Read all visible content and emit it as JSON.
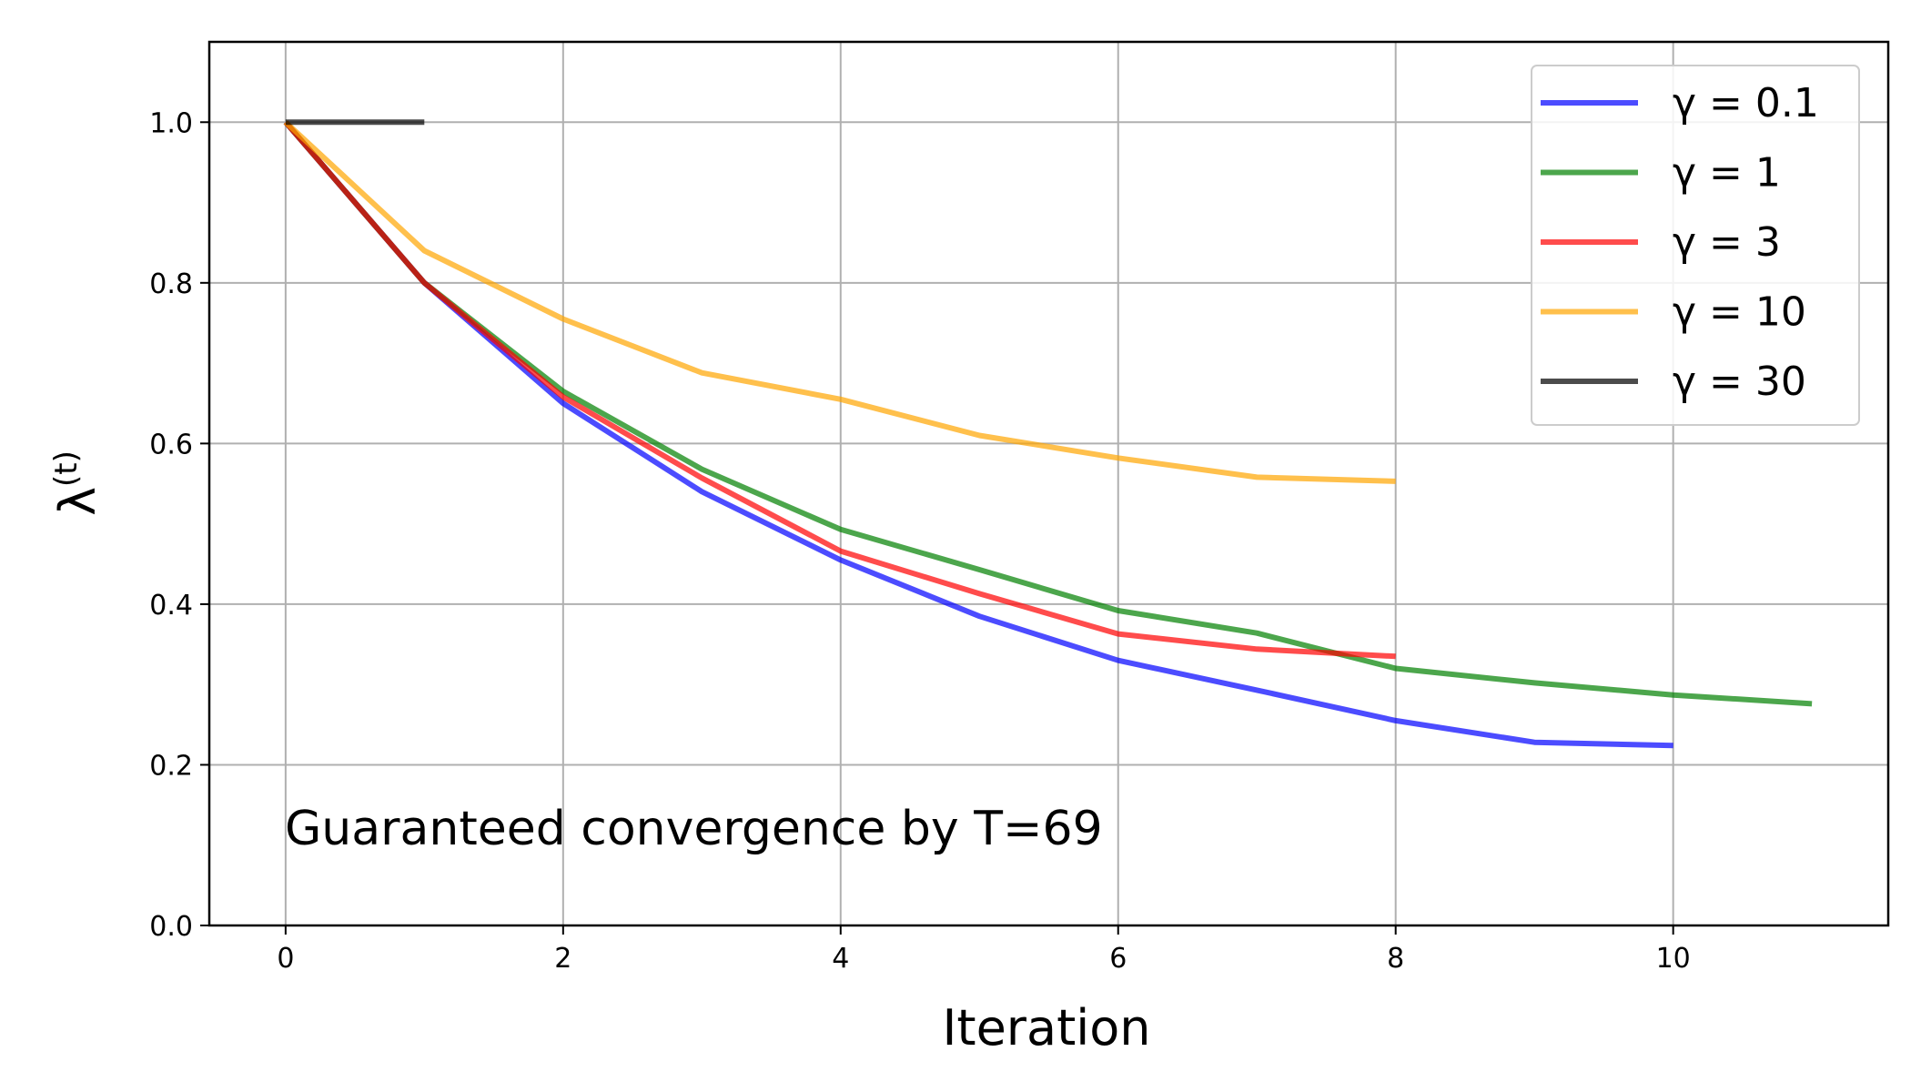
{
  "chart_data": {
    "type": "line",
    "xlabel": "Iteration",
    "ylabel": "λ",
    "ylabel_sup": "(t)",
    "xlim": [
      -0.55,
      11.55
    ],
    "ylim": [
      0.0,
      1.1
    ],
    "xticks": [
      0,
      2,
      4,
      6,
      8,
      10
    ],
    "yticks": [
      0.0,
      0.2,
      0.4,
      0.6,
      0.8,
      1.0
    ],
    "grid": true,
    "legend_position": "top-right",
    "annotation": "Guaranteed convergence by T=69",
    "series": [
      {
        "name": "γ = 0.1",
        "color": "#0000ff",
        "x": [
          0,
          1,
          2,
          3,
          4,
          5,
          6,
          7,
          8,
          9,
          10
        ],
        "y": [
          1.0,
          0.8,
          0.65,
          0.54,
          0.455,
          0.385,
          0.33,
          0.293,
          0.255,
          0.228,
          0.224
        ]
      },
      {
        "name": "γ = 1",
        "color": "#008000",
        "x": [
          0,
          1,
          2,
          3,
          4,
          5,
          6,
          7,
          8,
          9,
          10,
          11
        ],
        "y": [
          1.0,
          0.8,
          0.665,
          0.568,
          0.493,
          0.443,
          0.392,
          0.364,
          0.32,
          0.302,
          0.287,
          0.276
        ]
      },
      {
        "name": "γ = 3",
        "color": "#ff0000",
        "x": [
          0,
          1,
          2,
          3,
          4,
          5,
          6,
          7,
          8
        ],
        "y": [
          1.0,
          0.8,
          0.658,
          0.557,
          0.466,
          0.413,
          0.363,
          0.344,
          0.335
        ]
      },
      {
        "name": "γ = 10",
        "color": "#ffa500",
        "x": [
          0,
          1,
          2,
          3,
          4,
          5,
          6,
          7,
          8
        ],
        "y": [
          1.0,
          0.84,
          0.755,
          0.688,
          0.655,
          0.61,
          0.582,
          0.558,
          0.553
        ]
      },
      {
        "name": "γ = 30",
        "color": "#000000",
        "x": [
          0,
          1
        ],
        "y": [
          1.0,
          1.0
        ]
      }
    ]
  }
}
